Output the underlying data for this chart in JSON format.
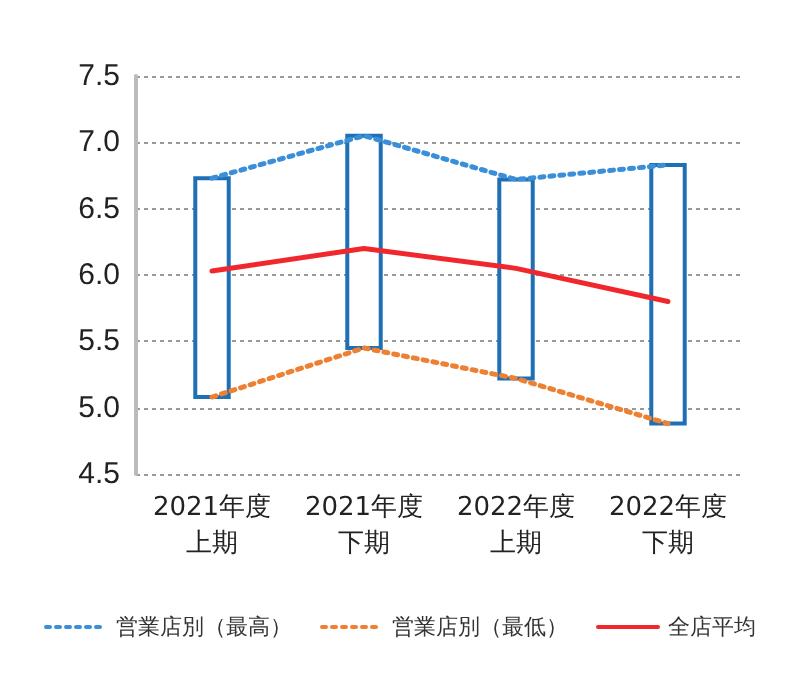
{
  "chart_data": {
    "type": "line",
    "categories": [
      "2021年度上期",
      "2021年度下期",
      "2022年度上期",
      "2022年度下期"
    ],
    "series": [
      {
        "type": "bar",
        "color": "#1f6fb5",
        "base": [
          5.08,
          5.45,
          5.22,
          4.88
        ],
        "values": [
          1.65,
          1.6,
          1.5,
          1.95
        ]
      },
      {
        "name": "営業店別（最高）",
        "color": "#3a8fd8",
        "line_style": "dotted",
        "values": [
          6.73,
          7.05,
          6.72,
          6.83
        ]
      },
      {
        "name": "営業店別（最低）",
        "color": "#ee8033",
        "line_style": "dotted",
        "values": [
          5.08,
          5.45,
          5.22,
          4.88
        ]
      },
      {
        "name": "全店平均",
        "color": "#f0282d",
        "line_style": "solid",
        "values": [
          6.03,
          6.2,
          6.05,
          5.8
        ]
      }
    ],
    "ylim": [
      4.5,
      7.5
    ],
    "yticks": [
      {
        "value": 4.5,
        "label": "4.5"
      },
      {
        "value": 5,
        "label": "5.0"
      },
      {
        "value": 5.5,
        "label": "5.5"
      },
      {
        "value": 6,
        "label": "6.0"
      },
      {
        "value": 6.5,
        "label": "6.5"
      },
      {
        "value": 7,
        "label": "7.0"
      },
      {
        "value": 7.5,
        "label": "7.5"
      }
    ],
    "grid": "y",
    "legend": "bottom",
    "marker": "none"
  }
}
